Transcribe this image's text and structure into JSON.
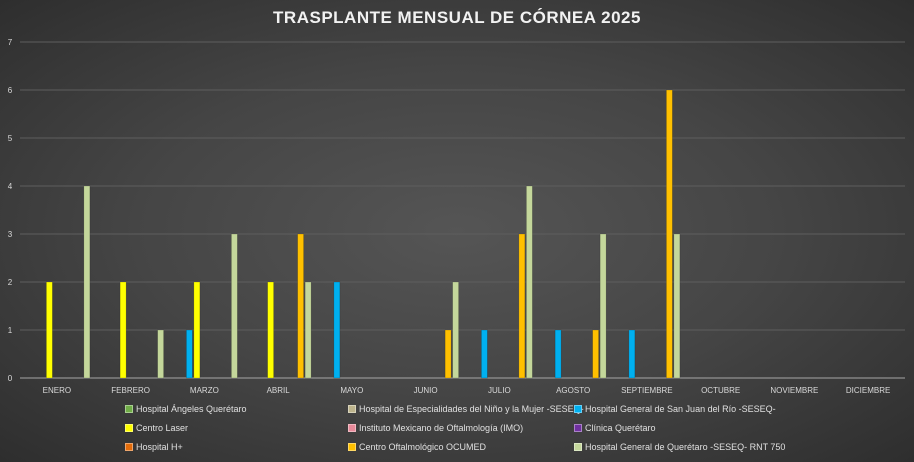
{
  "chart_data": {
    "type": "bar",
    "title": "TRASPLANTE MENSUAL DE CÓRNEA 2025",
    "xlabel": "",
    "ylabel": "",
    "ylim": [
      0,
      7
    ],
    "yticks": [
      "0",
      "1",
      "2",
      "3",
      "4",
      "5",
      "6",
      "7"
    ],
    "grid": true,
    "legend_position": "bottom",
    "categories": [
      "ENERO",
      "FEBRERO",
      "MARZO",
      "ABRIL",
      "MAYO",
      "JUNIO",
      "JULIO",
      "AGOSTO",
      "SEPTIEMBRE",
      "OCTUBRE",
      "NOVIEMBRE",
      "DICIEMBRE"
    ],
    "series": [
      {
        "name": "Hospital Ángeles Querétaro",
        "color": "#70ad47",
        "values": [
          0,
          0,
          0,
          0,
          0,
          0,
          0,
          0,
          0,
          0,
          0,
          0
        ]
      },
      {
        "name": "Hospital de Especialidades del Niño y la Mujer -SESEQ-",
        "color": "#bdb48c",
        "values": [
          0,
          0,
          0,
          0,
          0,
          0,
          0,
          0,
          0,
          0,
          0,
          0
        ]
      },
      {
        "name": "Hospital General de San Juan del Río -SESEQ-",
        "color": "#00b0f0",
        "values": [
          0,
          0,
          1,
          0,
          2,
          0,
          1,
          1,
          1,
          0,
          0,
          0
        ]
      },
      {
        "name": "Centro Laser",
        "color": "#ffff00",
        "values": [
          2,
          2,
          2,
          2,
          0,
          0,
          0,
          0,
          0,
          0,
          0,
          0
        ]
      },
      {
        "name": "Instituto Mexicano de Oftalmología (IMO)",
        "color": "#e88a9a",
        "values": [
          0,
          0,
          0,
          0,
          0,
          0,
          0,
          0,
          0,
          0,
          0,
          0
        ]
      },
      {
        "name": "Clínica Querétaro",
        "color": "#7030a0",
        "values": [
          0,
          0,
          0,
          0,
          0,
          0,
          0,
          0,
          0,
          0,
          0,
          0
        ]
      },
      {
        "name": "Hospital H+",
        "color": "#e36c0a",
        "values": [
          0,
          0,
          0,
          0,
          0,
          0,
          0,
          0,
          0,
          0,
          0,
          0
        ]
      },
      {
        "name": "Centro Oftalmológico OCUMED",
        "color": "#ffc000",
        "values": [
          0,
          0,
          0,
          3,
          0,
          1,
          3,
          1,
          6,
          0,
          0,
          0
        ]
      },
      {
        "name": "Hospital General de Querétaro -SESEQ- RNT 750",
        "color": "#c4d79b",
        "values": [
          4,
          1,
          3,
          2,
          0,
          2,
          4,
          3,
          3,
          0,
          0,
          0
        ]
      }
    ]
  }
}
